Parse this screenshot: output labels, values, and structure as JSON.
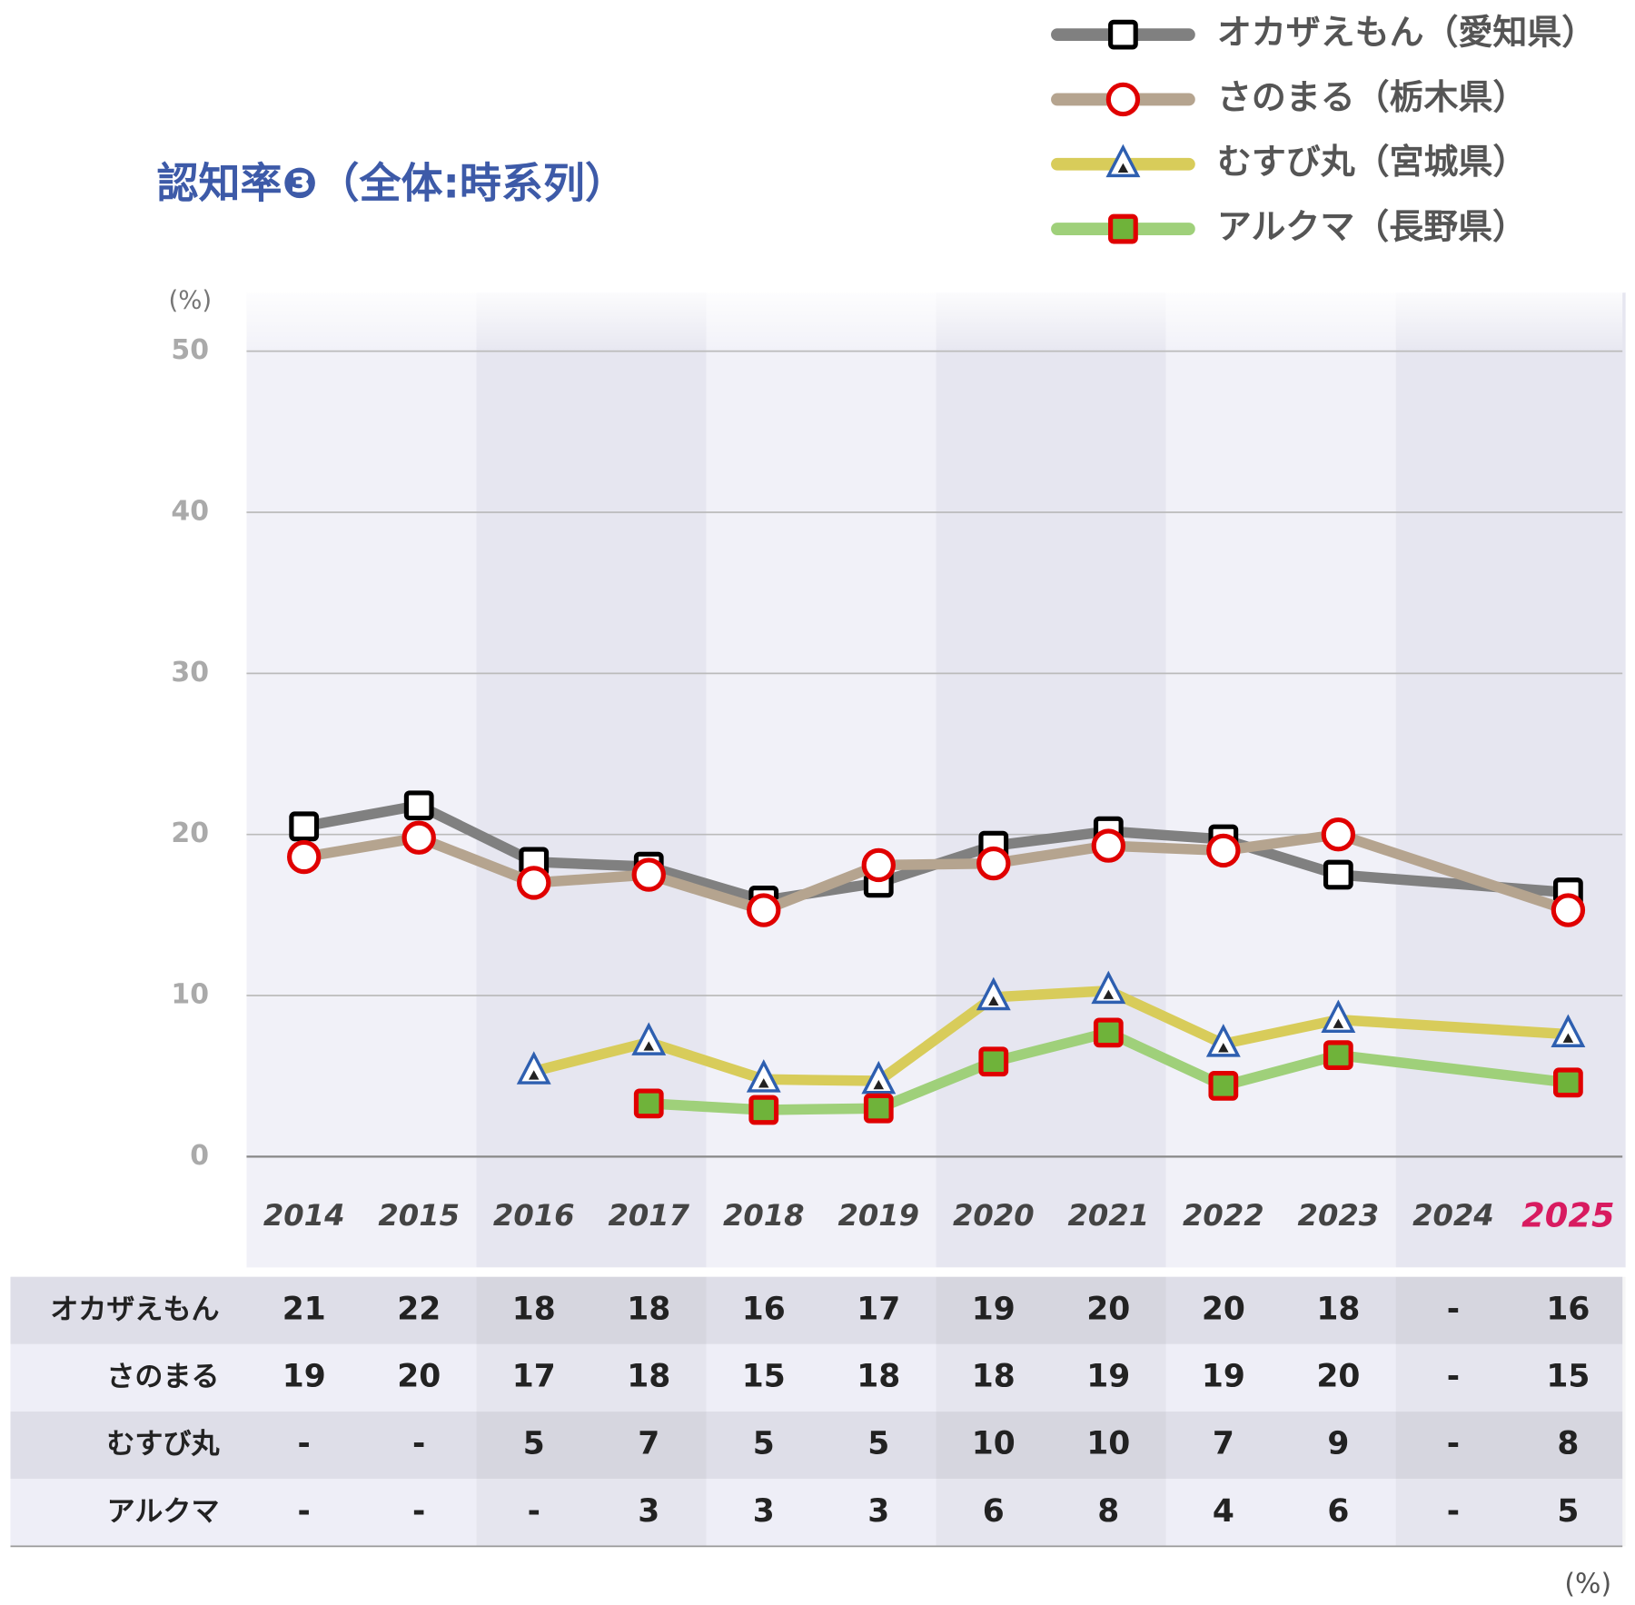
{
  "chart_data": {
    "type": "line",
    "title": "認知率❸（全体:時系列）",
    "y_unit": "(%)",
    "table_unit": "(%)",
    "categories": [
      "2014",
      "2015",
      "2016",
      "2017",
      "2018",
      "2019",
      "2020",
      "2021",
      "2022",
      "2023",
      "2024",
      "2025"
    ],
    "category_label_colors": [
      "#444444",
      "#444444",
      "#444444",
      "#444444",
      "#444444",
      "#444444",
      "#444444",
      "#444444",
      "#444444",
      "#444444",
      "#444444",
      "#d81b60"
    ],
    "ylim": [
      0,
      50
    ],
    "yticks": [
      0,
      10,
      20,
      30,
      40,
      50
    ],
    "grid": true,
    "series": [
      {
        "name": "オカザえもん（愛知県）",
        "row_label": "オカザえもん",
        "color": "#808080",
        "marker": "square",
        "marker_stroke": "#000000",
        "marker_fill": "#ffffff",
        "values": [
          20.5,
          21.8,
          18.3,
          18.0,
          15.9,
          17.0,
          19.3,
          20.2,
          19.7,
          17.5,
          null,
          16.4
        ],
        "value_labels": [
          "21",
          "22",
          "18",
          "18",
          "16",
          "17",
          "19",
          "20",
          "20",
          "18",
          "-",
          "16"
        ]
      },
      {
        "name": "さのまる（栃木県）",
        "row_label": "さのまる",
        "color": "#b5a48f",
        "marker": "circle",
        "marker_stroke": "#e00000",
        "marker_fill": "#ffffff",
        "values": [
          18.6,
          19.8,
          17.0,
          17.5,
          15.3,
          18.1,
          18.2,
          19.3,
          19.0,
          20.0,
          null,
          15.3
        ],
        "value_labels": [
          "19",
          "20",
          "17",
          "18",
          "15",
          "18",
          "18",
          "19",
          "19",
          "20",
          "-",
          "15"
        ]
      },
      {
        "name": "むすび丸（宮城県）",
        "row_label": "むすび丸",
        "color": "#d8cc5a",
        "marker": "triangle",
        "marker_stroke": "#2e5fb0",
        "marker_fill": "#ffffff",
        "values": [
          null,
          null,
          5.3,
          7.1,
          4.8,
          4.7,
          9.9,
          10.3,
          7.0,
          8.5,
          null,
          7.6
        ],
        "value_labels": [
          "-",
          "-",
          "5",
          "7",
          "5",
          "5",
          "10",
          "10",
          "7",
          "9",
          "-",
          "8"
        ]
      },
      {
        "name": "アルクマ（長野県）",
        "row_label": "アルクマ",
        "color": "#9fd07a",
        "marker": "square",
        "marker_stroke": "#e00000",
        "marker_fill": "#6fb33a",
        "values": [
          null,
          null,
          null,
          3.3,
          2.9,
          3.0,
          5.9,
          7.7,
          4.4,
          6.3,
          null,
          4.6
        ],
        "value_labels": [
          "-",
          "-",
          "-",
          "3",
          "3",
          "3",
          "6",
          "8",
          "4",
          "6",
          "-",
          "5"
        ]
      }
    ]
  }
}
